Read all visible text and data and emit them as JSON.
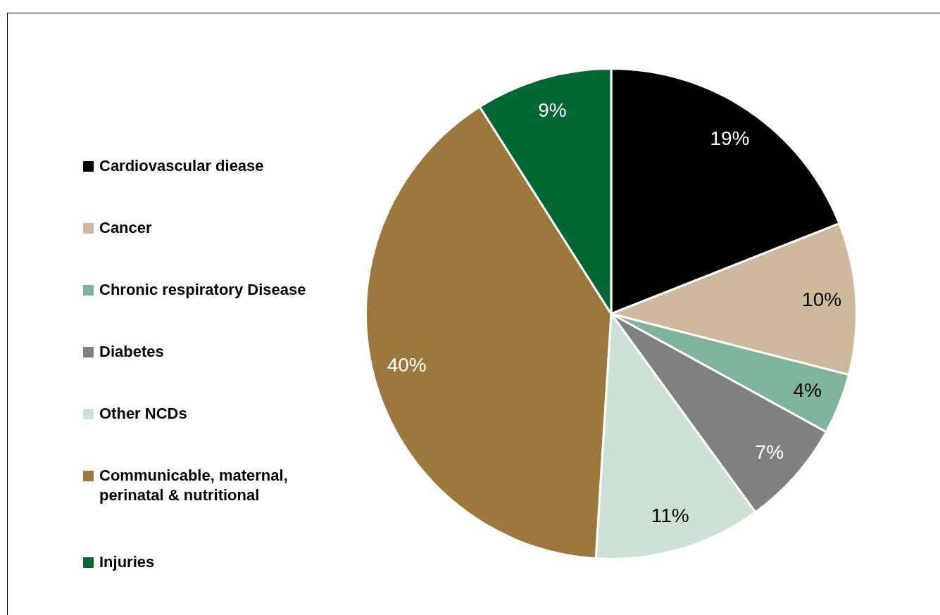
{
  "chart_data": {
    "type": "pie",
    "categories": [
      "Cardiovascular diease",
      "Cancer",
      "Chronic respiratory Disease",
      "Diabetes",
      "Other NCDs",
      "Communicable, maternal, perinatal & nutritional",
      "Injuries"
    ],
    "values": [
      19,
      10,
      4,
      7,
      11,
      40,
      9
    ],
    "colors": [
      "#000000",
      "#cdb89c",
      "#80b49a",
      "#808080",
      "#cfe1d7",
      "#9c773e",
      "#006633"
    ],
    "value_labels": [
      "19%",
      "10%",
      "4%",
      "7%",
      "11%",
      "40%",
      "9%"
    ],
    "legend": "left"
  }
}
